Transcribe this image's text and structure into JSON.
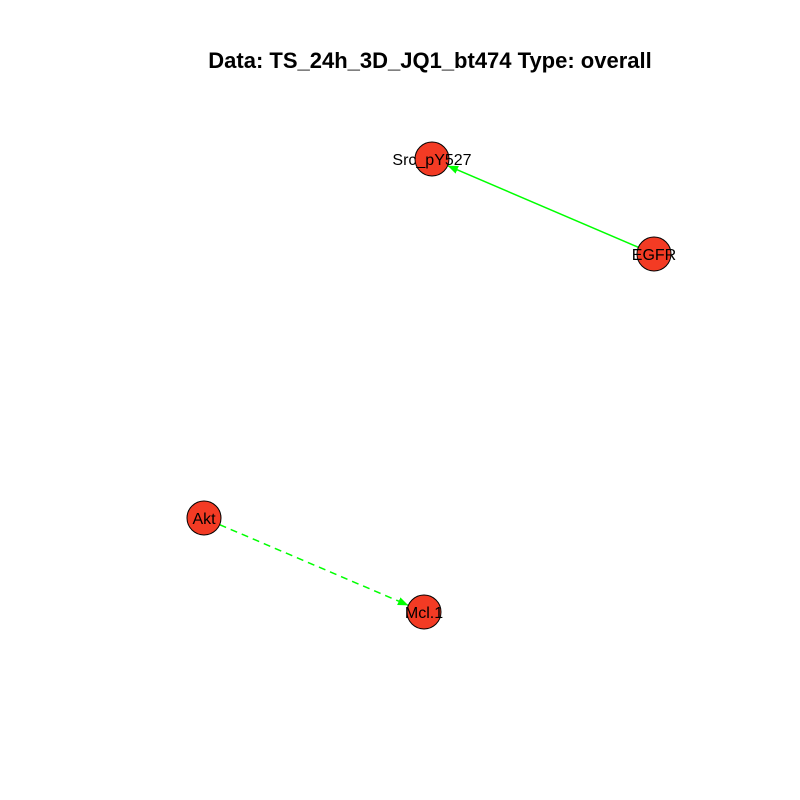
{
  "title": "Data: TS_24h_3D_JQ1_bt474 Type: overall",
  "colors": {
    "node_fill": "#f33b24",
    "node_stroke": "#000000",
    "edge": "#00ff00"
  },
  "nodes": [
    {
      "id": "Src_pY527",
      "label": "Src_pY527"
    },
    {
      "id": "EGFR",
      "label": "EGFR"
    },
    {
      "id": "Akt",
      "label": "Akt"
    },
    {
      "id": "Mcl.1",
      "label": "Mcl.1"
    }
  ],
  "edges": [
    {
      "from": "EGFR",
      "to": "Src_pY527",
      "style": "solid"
    },
    {
      "from": "Akt",
      "to": "Mcl.1",
      "style": "dashed"
    }
  ]
}
